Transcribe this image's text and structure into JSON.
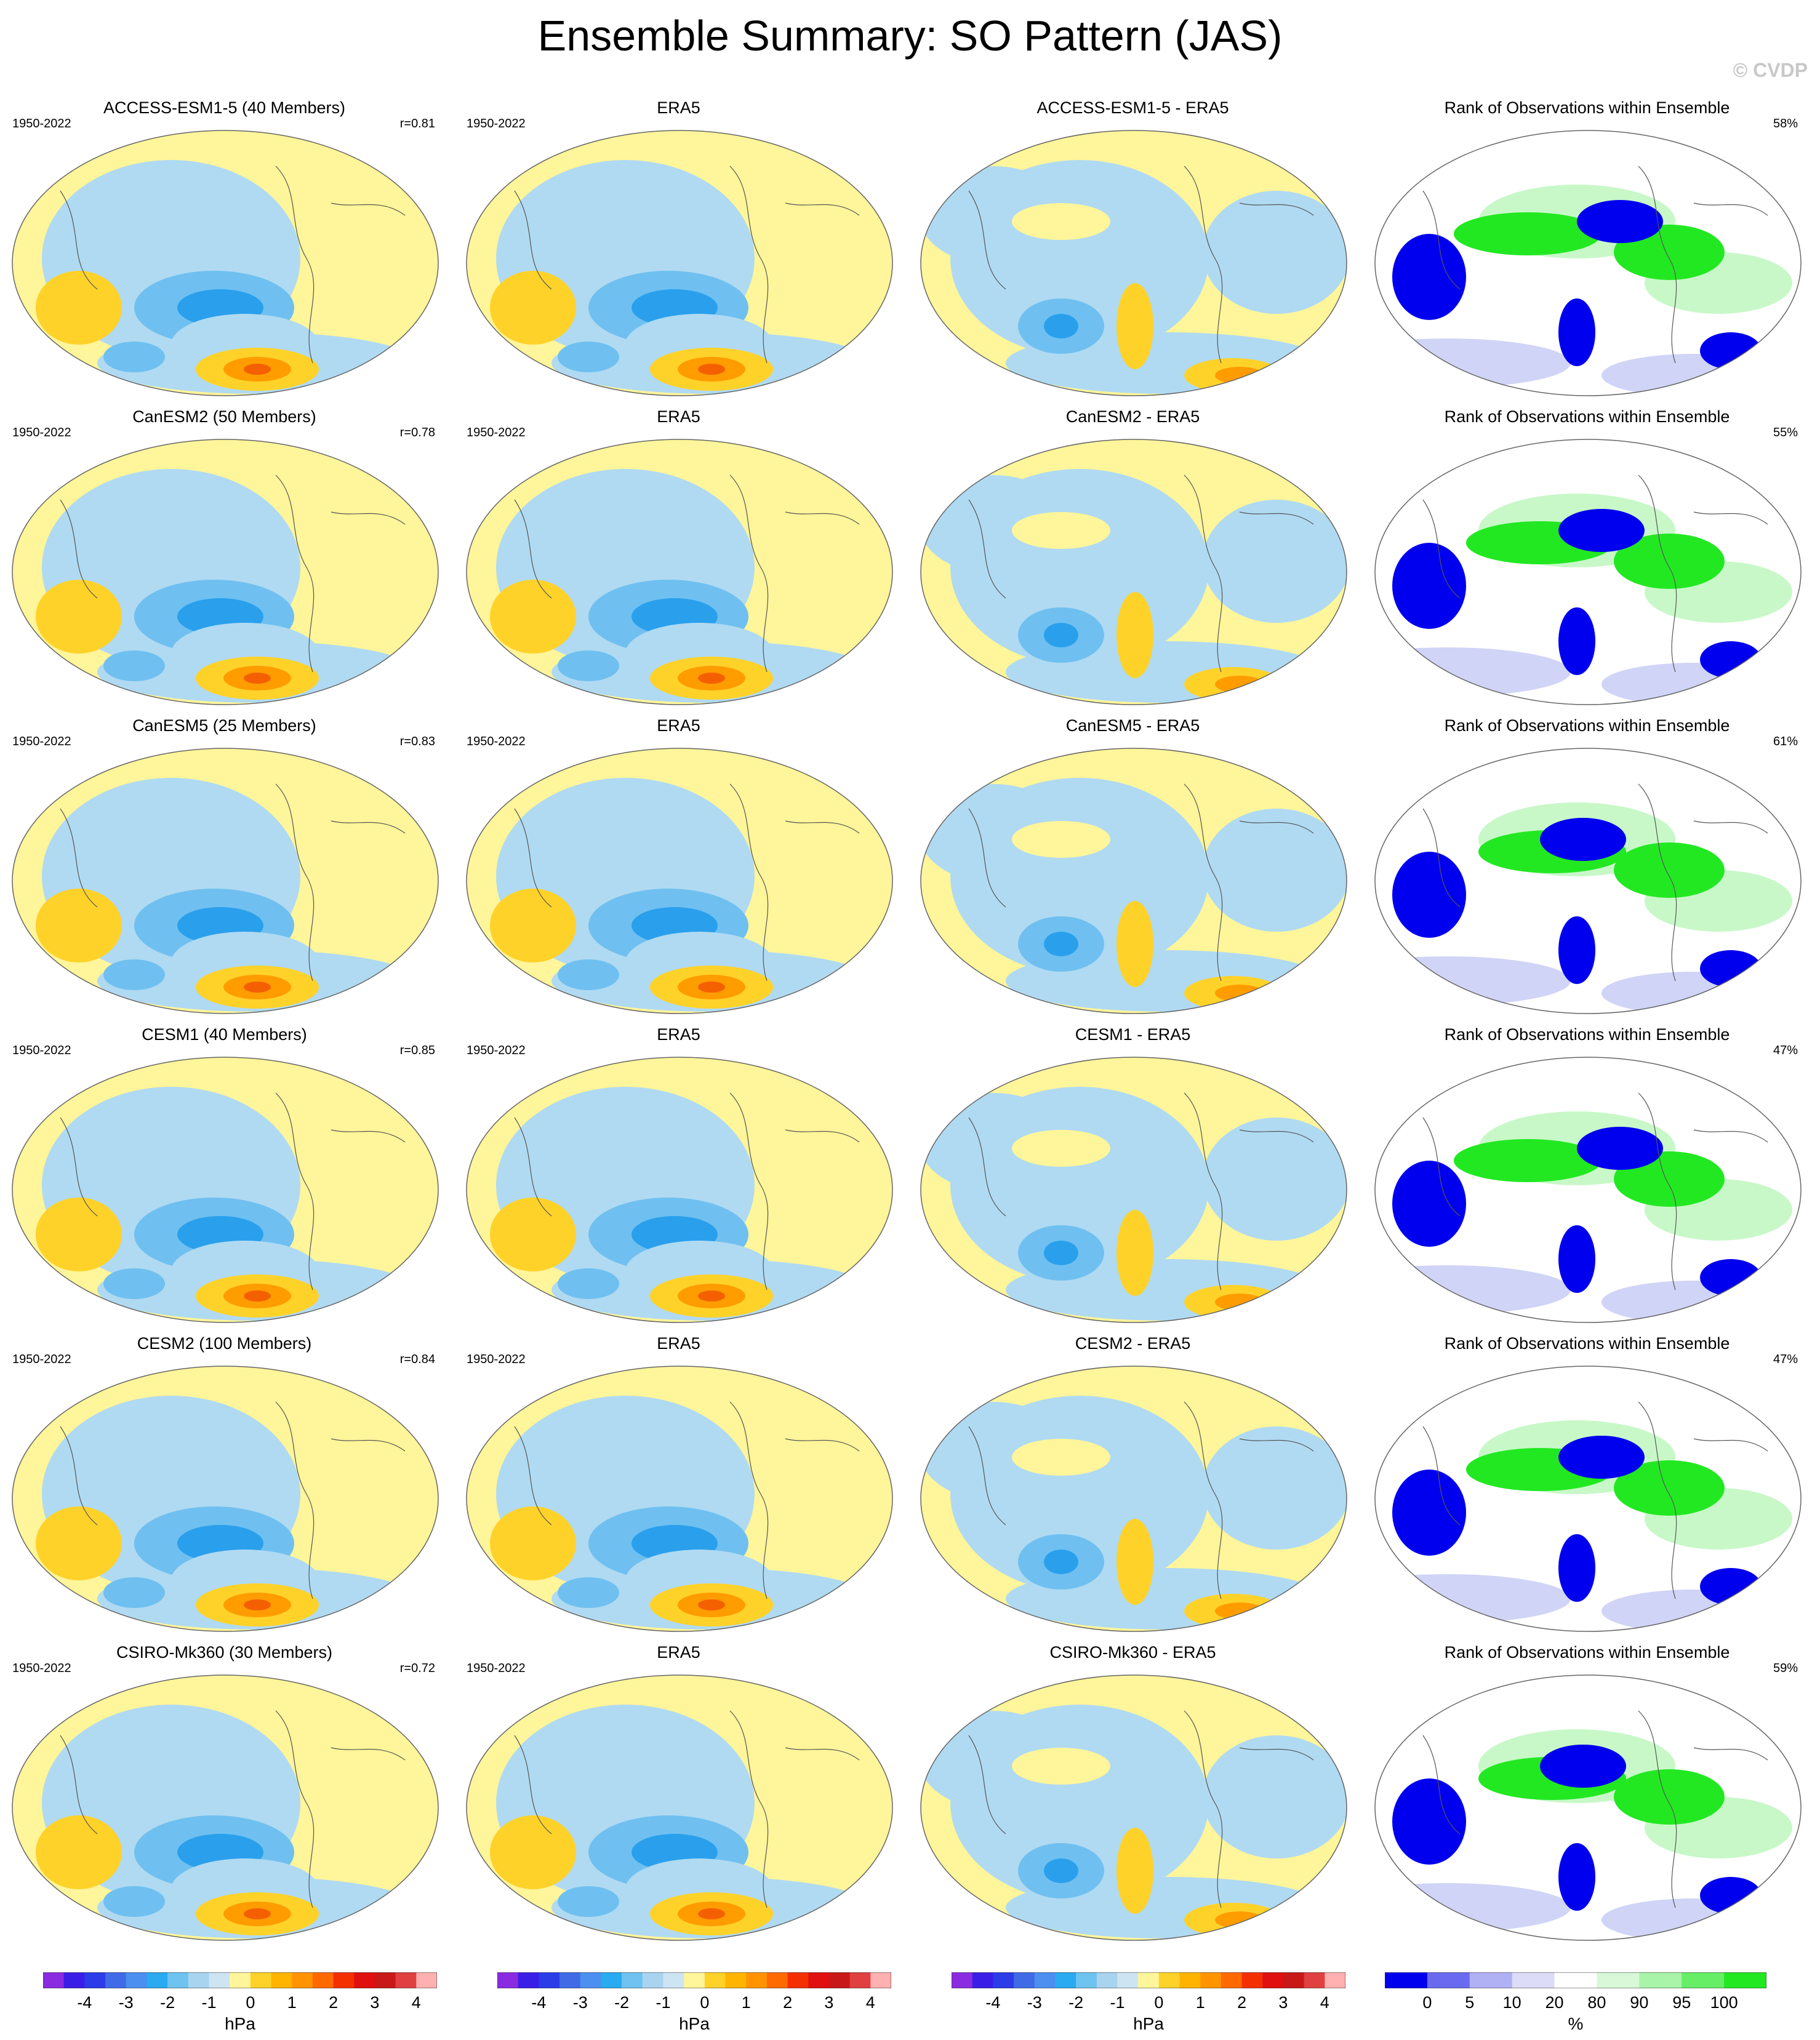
{
  "title": "Ensemble Summary: SO Pattern (JAS)",
  "watermark": "© CVDP",
  "rows": [
    {
      "model": "ACCESS-ESM1-5 (40 Members)",
      "years": "1950-2022",
      "corr": "r=0.81",
      "obs": "ERA5",
      "obs_years": "1950-2022",
      "diff": "ACCESS-ESM1-5 - ERA5",
      "rank": "Rank of Observations within Ensemble",
      "rank_pct": "58%"
    },
    {
      "model": "CanESM2 (50 Members)",
      "years": "1950-2022",
      "corr": "r=0.78",
      "obs": "ERA5",
      "obs_years": "1950-2022",
      "diff": "CanESM2 - ERA5",
      "rank": "Rank of Observations within Ensemble",
      "rank_pct": "55%"
    },
    {
      "model": "CanESM5 (25 Members)",
      "years": "1950-2022",
      "corr": "r=0.83",
      "obs": "ERA5",
      "obs_years": "1950-2022",
      "diff": "CanESM5 - ERA5",
      "rank": "Rank of Observations within Ensemble",
      "rank_pct": "61%"
    },
    {
      "model": "CESM1 (40 Members)",
      "years": "1950-2022",
      "corr": "r=0.85",
      "obs": "ERA5",
      "obs_years": "1950-2022",
      "diff": "CESM1 - ERA5",
      "rank": "Rank of Observations within Ensemble",
      "rank_pct": "47%"
    },
    {
      "model": "CESM2 (100 Members)",
      "years": "1950-2022",
      "corr": "r=0.84",
      "obs": "ERA5",
      "obs_years": "1950-2022",
      "diff": "CESM2 - ERA5",
      "rank": "Rank of Observations within Ensemble",
      "rank_pct": "47%"
    },
    {
      "model": "CSIRO-Mk360 (30 Members)",
      "years": "1950-2022",
      "corr": "r=0.72",
      "obs": "ERA5",
      "obs_years": "1950-2022",
      "diff": "CSIRO-Mk360 - ERA5",
      "rank": "Rank of Observations within Ensemble",
      "rank_pct": "59%"
    }
  ],
  "colorbar_hpa": {
    "colors": [
      "#8a2be2",
      "#3a1ee8",
      "#2b3ce8",
      "#3f6be6",
      "#4b8ff0",
      "#2aaaf0",
      "#6ec3f0",
      "#a9d4f0",
      "#cde4f2",
      "#fff59a",
      "#ffd22a",
      "#ffb400",
      "#ff9400",
      "#ff6a00",
      "#f43000",
      "#e01010",
      "#c81818",
      "#e04040",
      "#ffb0b0"
    ],
    "ticks": [
      "-4",
      "-3",
      "-2",
      "-1",
      "0",
      "1",
      "2",
      "3",
      "4"
    ],
    "unit": "hPa"
  },
  "colorbar_rank": {
    "colors": [
      "#0000ee",
      "#6a6af0",
      "#b0b0f4",
      "#dcdcf8",
      "#ffffff",
      "#d8f8d8",
      "#a8f4a8",
      "#66ee66",
      "#22e822"
    ],
    "ticks": [
      "0",
      "5",
      "10",
      "20",
      "80",
      "90",
      "95",
      "100"
    ],
    "unit": "%"
  },
  "field_colors": {
    "land_bg": "#fff59a",
    "light_blue": "#b0daf2",
    "mid_blue": "#6fc0f0",
    "deep_blue": "#2aa0ec",
    "light_orange": "#ffd22a",
    "orange": "#ff9c00",
    "red_orange": "#f46000",
    "rank_blue": "#0000ee",
    "rank_green": "#22e822",
    "rank_light_green": "#c8f8c8",
    "rank_light_blue": "#d0d4f6"
  }
}
